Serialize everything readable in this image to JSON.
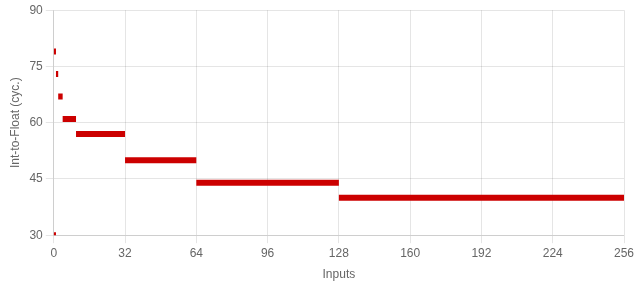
{
  "chart_data": {
    "type": "step",
    "xlabel": "Inputs",
    "ylabel": "Int-to-Float (cyc.)",
    "xlim": [
      0,
      256
    ],
    "ylim": [
      30,
      90
    ],
    "xticks": [
      0,
      32,
      64,
      96,
      128,
      160,
      192,
      224,
      256
    ],
    "yticks": [
      30,
      45,
      60,
      75,
      90
    ],
    "color": "#cc0000",
    "grid": true,
    "steps": [
      {
        "x_start": 0,
        "x_end": 1,
        "y": 79
      },
      {
        "x_start": 1,
        "x_end": 2,
        "y": 73
      },
      {
        "x_start": 2,
        "x_end": 4,
        "y": 67
      },
      {
        "x_start": 4,
        "x_end": 10,
        "y": 61
      },
      {
        "x_start": 10,
        "x_end": 32,
        "y": 57
      },
      {
        "x_start": 32,
        "x_end": 64,
        "y": 50
      },
      {
        "x_start": 64,
        "x_end": 128,
        "y": 44
      },
      {
        "x_start": 128,
        "x_end": 256,
        "y": 40
      },
      {
        "x_start": 0,
        "x_end": 1,
        "y": 30
      }
    ]
  }
}
